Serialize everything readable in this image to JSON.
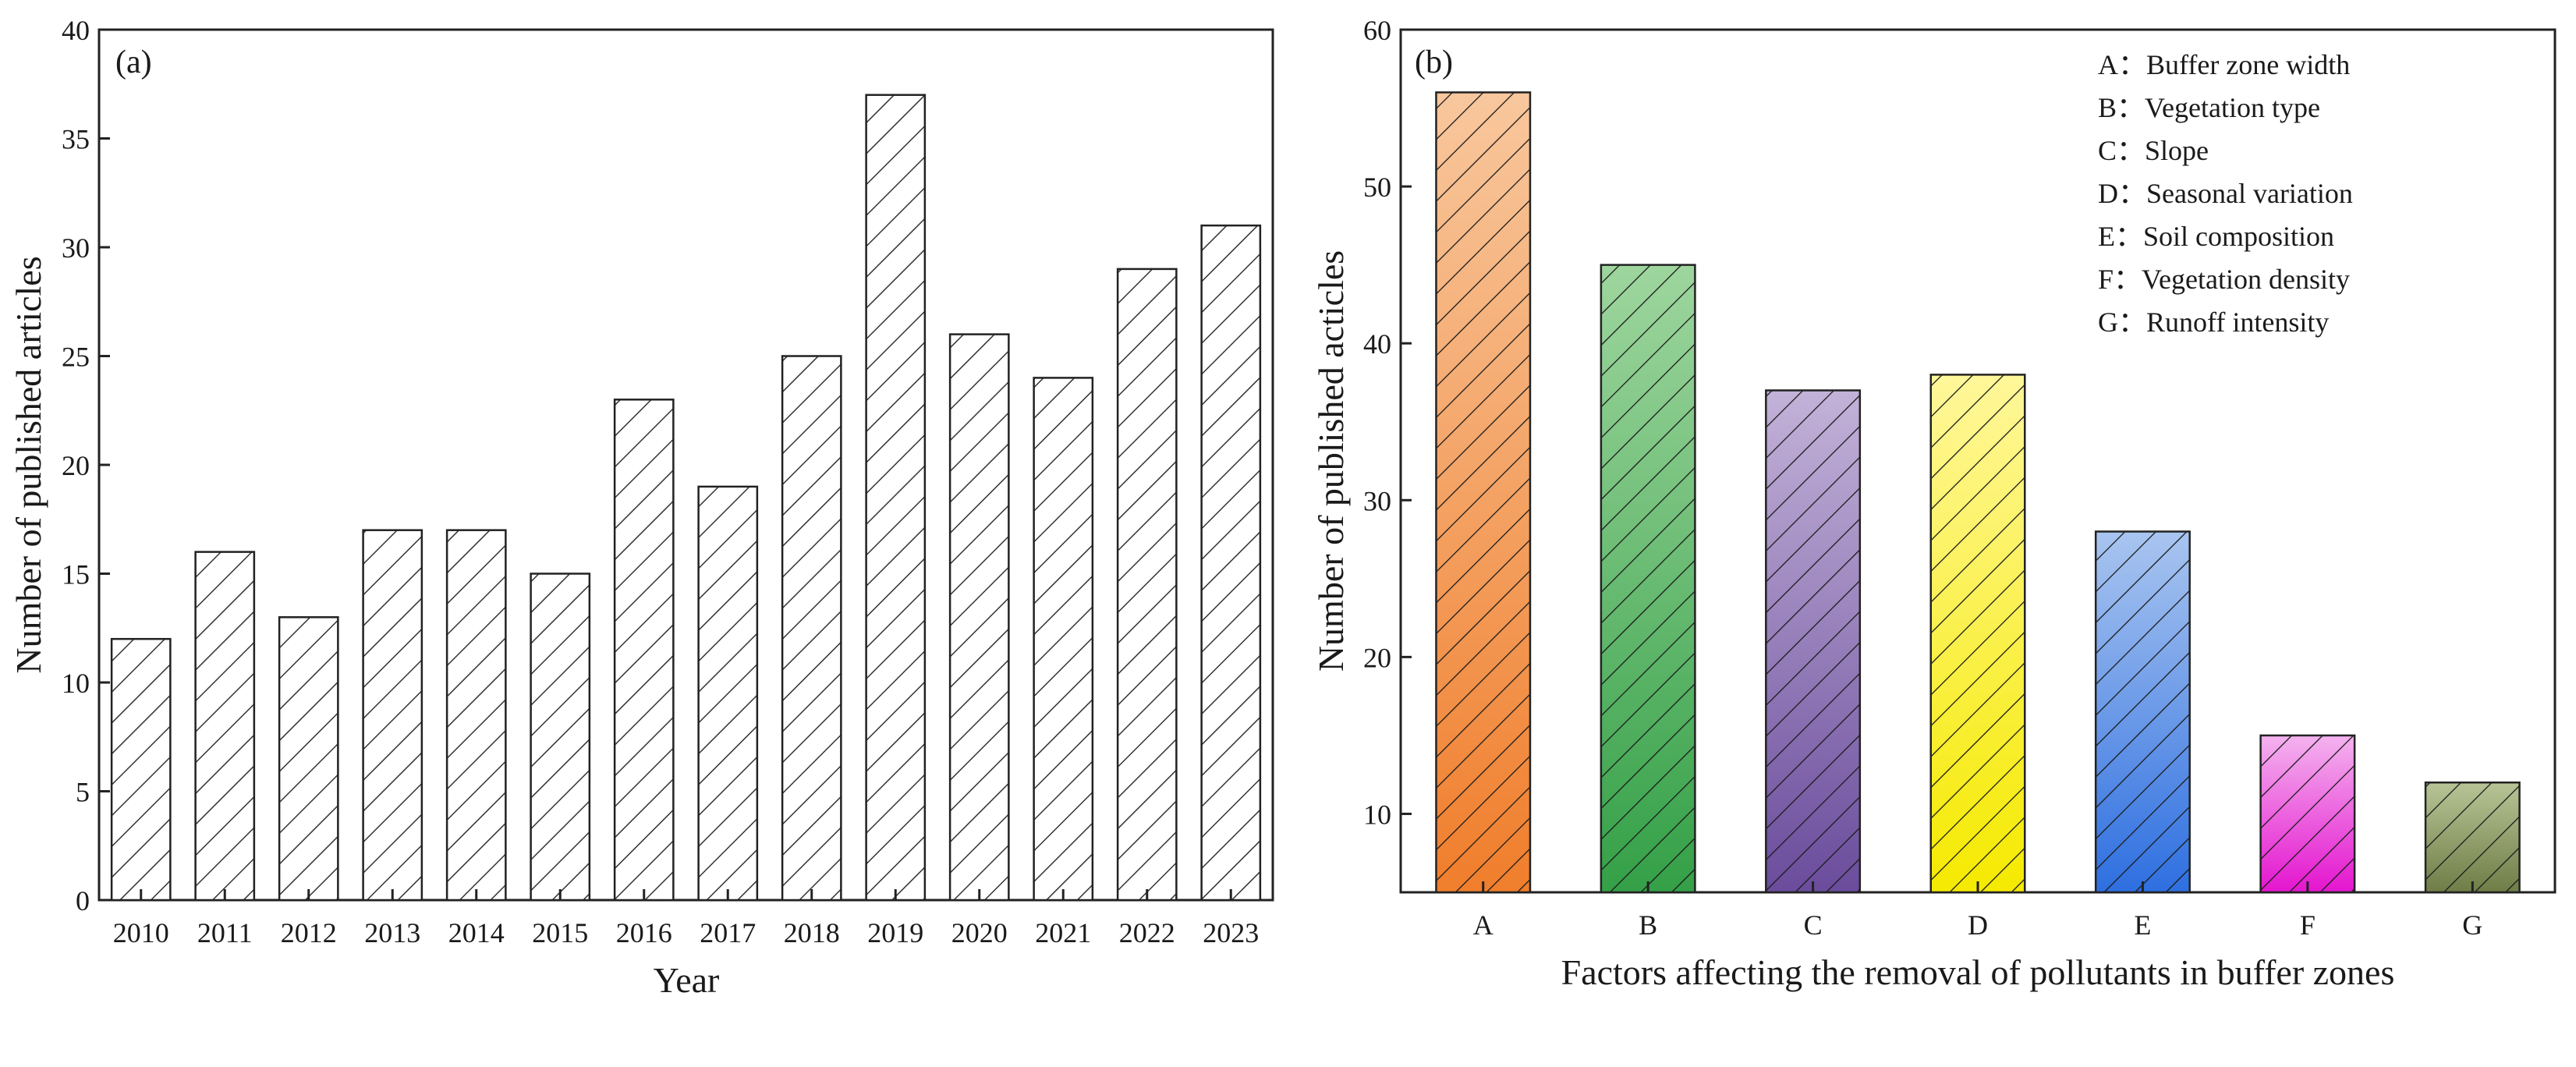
{
  "chart_data": [
    {
      "type": "bar",
      "panel_label": "(a)",
      "title": "",
      "xlabel": "Year",
      "ylabel": "Number of published articles",
      "categories": [
        "2010",
        "2011",
        "2012",
        "2013",
        "2014",
        "2015",
        "2016",
        "2017",
        "2018",
        "2019",
        "2020",
        "2021",
        "2022",
        "2023"
      ],
      "values": [
        12,
        16,
        13,
        17,
        17,
        15,
        23,
        19,
        25,
        37,
        26,
        24,
        29,
        31
      ],
      "ylim": [
        0,
        40
      ],
      "yticks": [
        0,
        5,
        10,
        15,
        20,
        25,
        30,
        35,
        40
      ],
      "grid": false,
      "legend": "none",
      "bar_style": "white fill, black diagonal hatch",
      "colors": {
        "bar_fill": "#ffffff",
        "hatch": "#333333",
        "outline": "#222222"
      }
    },
    {
      "type": "bar",
      "panel_label": "(b)",
      "title": "",
      "xlabel": "Factors affecting the removal of pollutants in buffer zones",
      "ylabel": "Number of published acticles",
      "categories": [
        "A",
        "B",
        "C",
        "D",
        "E",
        "F",
        "G"
      ],
      "values": [
        56,
        45,
        37,
        38,
        28,
        15,
        12
      ],
      "ylim": [
        5,
        60
      ],
      "yticks": [
        10,
        20,
        30,
        40,
        50,
        60
      ],
      "grid": false,
      "legend": "top-right",
      "legend_entries": [
        "A：Buffer zone width",
        "B：Vegetation type",
        "C：Slope",
        "D：Seasonal variation",
        "E：Soil composition",
        "F：Vegetation density",
        "G：Runoff intensity"
      ],
      "bar_style": "vertical gradient fill (light top, saturated bottom) with black diagonal hatch",
      "colors": {
        "A": [
          "#f8c79d",
          "#f07e2c"
        ],
        "B": [
          "#9ed69e",
          "#34a047"
        ],
        "C": [
          "#c3b2d8",
          "#6a4c9c"
        ],
        "D": [
          "#fff79a",
          "#f5ea00"
        ],
        "E": [
          "#a9c5f0",
          "#2e6fe0"
        ],
        "F": [
          "#f4b3ef",
          "#e415cf"
        ],
        "G": [
          "#b8c496",
          "#6f7d47"
        ],
        "hatch": "#1a1a1a",
        "outline": "#222222"
      }
    }
  ]
}
